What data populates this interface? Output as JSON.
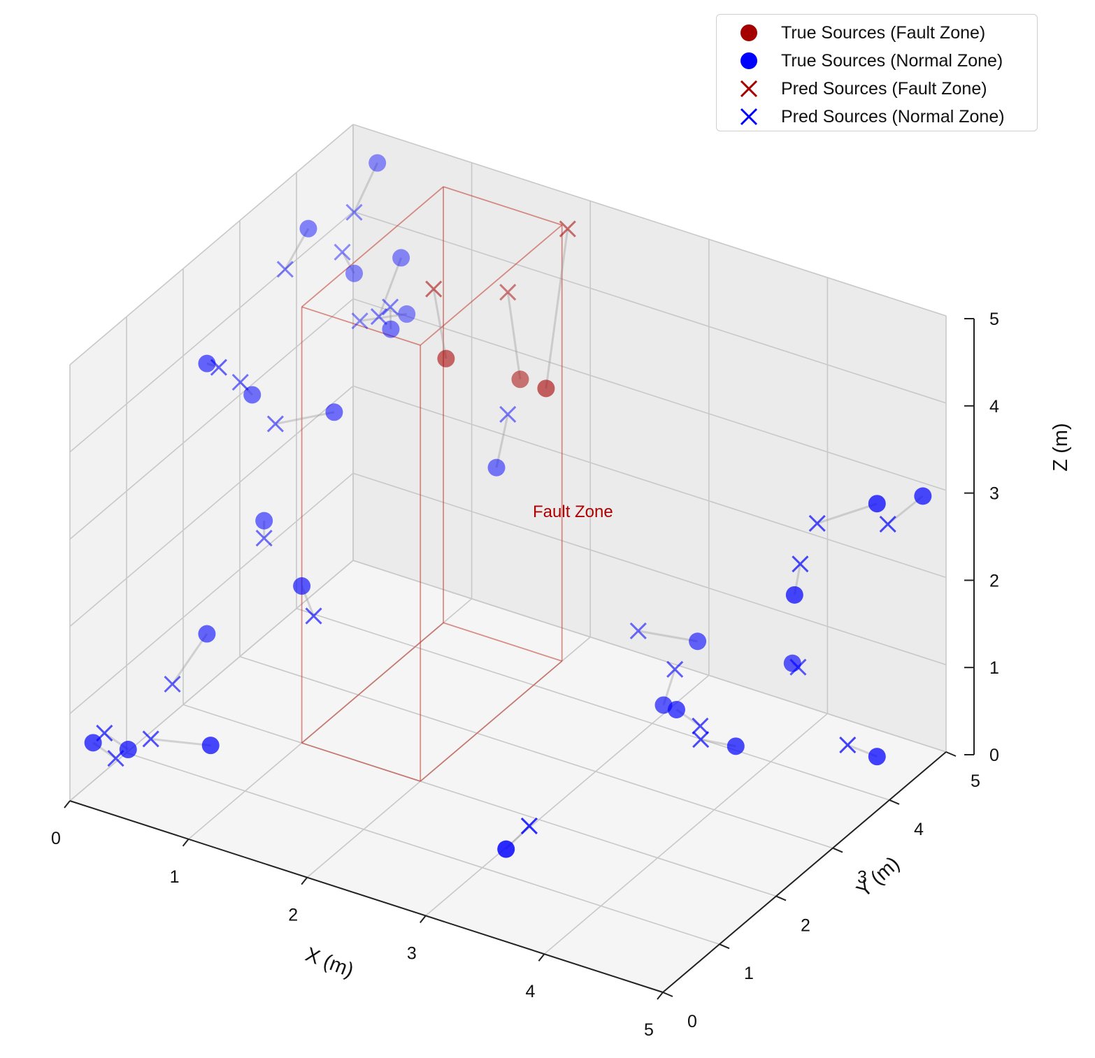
{
  "chart_data": {
    "type": "scatter3d",
    "xlabel": "X (m)",
    "ylabel": "Y (m)",
    "zlabel": "Z (m)",
    "xlim": [
      0,
      5
    ],
    "ylim": [
      0,
      5
    ],
    "zlim": [
      0,
      5
    ],
    "ticks": {
      "x": [
        "0",
        "1",
        "2",
        "3",
        "4",
        "5"
      ],
      "y": [
        "0",
        "1",
        "2",
        "3",
        "4",
        "5"
      ],
      "z": [
        "0",
        "1",
        "2",
        "3",
        "4",
        "5"
      ]
    },
    "grid": true,
    "legend_position": "top-right",
    "fault_zone": {
      "label": "Fault Zone",
      "x_range": [
        1.0,
        2.0
      ],
      "y_range": [
        2.0,
        4.5
      ],
      "z_range": [
        0.0,
        5.0
      ],
      "color": "#c0392b"
    },
    "series": [
      {
        "name": "True Sources (Fault Zone)",
        "marker": "circle",
        "color": "#a50000"
      },
      {
        "name": "True Sources (Normal Zone)",
        "marker": "circle",
        "color": "#0000ff"
      },
      {
        "name": "Pred Sources (Fault Zone)",
        "marker": "x",
        "color": "#a50000"
      },
      {
        "name": "Pred Sources (Normal Zone)",
        "marker": "x",
        "color": "#0000ff"
      }
    ],
    "pairs": [
      {
        "zone": "fault",
        "true": [
          1.5,
          3.5,
          3.8
        ],
        "pred": [
          1.3,
          3.7,
          4.4
        ]
      },
      {
        "zone": "fault",
        "true": [
          2.2,
          3.8,
          3.6
        ],
        "pred": [
          2.0,
          4.6,
          4.9
        ]
      },
      {
        "zone": "fault",
        "true": [
          1.6,
          4.6,
          3.0
        ],
        "pred": [
          1.4,
          4.8,
          3.8
        ]
      },
      {
        "zone": "normal",
        "true": [
          0.2,
          2.0,
          4.0
        ],
        "pred": [
          0.3,
          2.0,
          4.0
        ]
      },
      {
        "zone": "normal",
        "true": [
          0.1,
          4.0,
          4.4
        ],
        "pred": [
          0.0,
          3.8,
          4.0
        ]
      },
      {
        "zone": "normal",
        "true": [
          0.3,
          4.8,
          4.8
        ],
        "pred": [
          0.2,
          4.6,
          4.3
        ]
      },
      {
        "zone": "normal",
        "true": [
          0.2,
          4.6,
          3.6
        ],
        "pred": [
          0.1,
          4.6,
          3.8
        ]
      },
      {
        "zone": "normal",
        "true": [
          0.7,
          4.2,
          3.4
        ],
        "pred": [
          0.6,
          4.4,
          3.5
        ]
      },
      {
        "zone": "normal",
        "true": [
          0.5,
          4.8,
          3.8
        ],
        "pred": [
          0.6,
          4.2,
          3.5
        ]
      },
      {
        "zone": "normal",
        "true": [
          0.5,
          4.9,
          3.1
        ],
        "pred": [
          0.2,
          4.7,
          3.0
        ]
      },
      {
        "zone": "normal",
        "true": [
          0.2,
          2.8,
          3.2
        ],
        "pred": [
          0.1,
          2.8,
          3.3
        ]
      },
      {
        "zone": "normal",
        "true": [
          0.7,
          3.2,
          3.0
        ],
        "pred": [
          0.3,
          3.0,
          2.8
        ]
      },
      {
        "zone": "normal",
        "true": [
          1.4,
          4.6,
          1.9
        ],
        "pred": [
          1.4,
          4.8,
          2.4
        ]
      },
      {
        "zone": "normal",
        "true": [
          0.3,
          2.8,
          1.8
        ],
        "pred": [
          0.3,
          2.8,
          1.6
        ]
      },
      {
        "zone": "normal",
        "true": [
          0.2,
          2.0,
          0.9
        ],
        "pred": [
          0.1,
          1.6,
          0.5
        ]
      },
      {
        "zone": "normal",
        "true": [
          0.1,
          0.2,
          0.6
        ],
        "pred": [
          0.1,
          0.6,
          0.2
        ]
      },
      {
        "zone": "normal",
        "true": [
          0.3,
          0.4,
          0.5
        ],
        "pred": [
          0.1,
          0.4,
          0.6
        ]
      },
      {
        "zone": "normal",
        "true": [
          0.9,
          0.6,
          0.7
        ],
        "pred": [
          0.3,
          0.8,
          0.4
        ]
      },
      {
        "zone": "normal",
        "true": [
          1.0,
          2.0,
          1.8
        ],
        "pred": [
          1.1,
          2.0,
          1.5
        ]
      },
      {
        "zone": "normal",
        "true": [
          3.0,
          4.8,
          0.5
        ],
        "pred": [
          2.5,
          4.8,
          0.4
        ]
      },
      {
        "zone": "normal",
        "true": [
          3.0,
          4.2,
          0.1
        ],
        "pred": [
          3.0,
          4.4,
          0.4
        ]
      },
      {
        "zone": "normal",
        "true": [
          3.8,
          4.8,
          0.6
        ],
        "pred": [
          3.8,
          4.9,
          0.5
        ]
      },
      {
        "zone": "normal",
        "true": [
          3.3,
          3.8,
          0.4
        ],
        "pred": [
          3.5,
          3.8,
          0.3
        ]
      },
      {
        "zone": "normal",
        "true": [
          3.8,
          3.8,
          0.2
        ],
        "pred": [
          3.6,
          3.6,
          0.3
        ]
      },
      {
        "zone": "normal",
        "true": [
          4.2,
          4.0,
          2.0
        ],
        "pred": [
          4.2,
          4.1,
          2.3
        ]
      },
      {
        "zone": "normal",
        "true": [
          4.8,
          4.2,
          0.3
        ],
        "pred": [
          4.6,
          4.1,
          0.4
        ]
      },
      {
        "zone": "normal",
        "true": [
          4.8,
          4.2,
          3.2
        ],
        "pred": [
          4.2,
          4.4,
          2.6
        ]
      },
      {
        "zone": "normal",
        "true": [
          4.9,
          4.8,
          3.0
        ],
        "pred": [
          4.7,
          4.6,
          2.7
        ]
      },
      {
        "zone": "normal",
        "true": [
          3.2,
          1.0,
          0.3
        ],
        "pred": [
          3.3,
          1.2,
          0.5
        ]
      }
    ]
  }
}
